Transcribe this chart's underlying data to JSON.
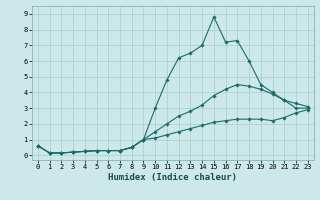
{
  "xlabel": "Humidex (Indice chaleur)",
  "bg_color": "#cde8e8",
  "grid_color": "#b0d0d0",
  "line_color": "#1a6b6b",
  "xlim": [
    -0.5,
    23.5
  ],
  "ylim": [
    -0.3,
    9.5
  ],
  "xticks": [
    0,
    1,
    2,
    3,
    4,
    5,
    6,
    7,
    8,
    9,
    10,
    11,
    12,
    13,
    14,
    15,
    16,
    17,
    18,
    19,
    20,
    21,
    22,
    23
  ],
  "yticks": [
    0,
    1,
    2,
    3,
    4,
    5,
    6,
    7,
    8,
    9
  ],
  "series1_x": [
    0,
    1,
    2,
    3,
    4,
    5,
    6,
    7,
    8,
    9,
    10,
    11,
    12,
    13,
    14,
    15,
    16,
    17,
    18,
    19,
    20,
    21,
    22,
    23
  ],
  "series1_y": [
    0.6,
    0.15,
    0.15,
    0.2,
    0.25,
    0.3,
    0.3,
    0.3,
    0.5,
    1.0,
    3.0,
    4.8,
    6.2,
    6.5,
    7.0,
    8.8,
    7.2,
    7.3,
    6.0,
    4.5,
    4.0,
    3.5,
    3.0,
    3.0
  ],
  "series2_x": [
    0,
    1,
    2,
    3,
    4,
    5,
    6,
    7,
    8,
    9,
    10,
    11,
    12,
    13,
    14,
    15,
    16,
    17,
    18,
    19,
    20,
    21,
    22,
    23
  ],
  "series2_y": [
    0.6,
    0.15,
    0.15,
    0.2,
    0.25,
    0.3,
    0.3,
    0.3,
    0.5,
    1.0,
    1.5,
    2.0,
    2.5,
    2.8,
    3.2,
    3.8,
    4.2,
    4.5,
    4.4,
    4.2,
    3.9,
    3.5,
    3.3,
    3.1
  ],
  "series3_x": [
    0,
    1,
    2,
    3,
    4,
    5,
    6,
    7,
    8,
    9,
    10,
    11,
    12,
    13,
    14,
    15,
    16,
    17,
    18,
    19,
    20,
    21,
    22,
    23
  ],
  "series3_y": [
    0.6,
    0.15,
    0.15,
    0.2,
    0.25,
    0.3,
    0.3,
    0.3,
    0.5,
    1.0,
    1.1,
    1.3,
    1.5,
    1.7,
    1.9,
    2.1,
    2.2,
    2.3,
    2.3,
    2.3,
    2.2,
    2.4,
    2.7,
    2.9
  ],
  "marker": "D",
  "marker_size": 1.8,
  "line_width": 0.8,
  "xlabel_fontsize": 6.5,
  "tick_fontsize": 5.0
}
